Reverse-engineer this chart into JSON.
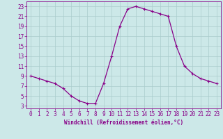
{
  "x": [
    0,
    1,
    2,
    3,
    4,
    5,
    6,
    7,
    8,
    9,
    10,
    11,
    12,
    13,
    14,
    15,
    16,
    17,
    18,
    19,
    20,
    21,
    22,
    23
  ],
  "y": [
    9,
    8.5,
    8,
    7.5,
    6.5,
    5,
    4,
    3.5,
    3.5,
    7.5,
    13,
    19,
    22.5,
    23,
    22.5,
    22,
    21.5,
    21,
    15,
    11,
    9.5,
    8.5,
    8,
    7.5
  ],
  "line_color": "#880088",
  "marker": "+",
  "marker_size": 3,
  "marker_lw": 0.8,
  "line_width": 0.9,
  "bg_color": "#cce8e8",
  "grid_color": "#aacccc",
  "xlabel": "Windchill (Refroidissement éolien,°C)",
  "xlabel_color": "#880088",
  "tick_color": "#880088",
  "yticks": [
    3,
    5,
    7,
    9,
    11,
    13,
    15,
    17,
    19,
    21,
    23
  ],
  "xticks": [
    0,
    1,
    2,
    3,
    4,
    5,
    6,
    7,
    8,
    9,
    10,
    11,
    12,
    13,
    14,
    15,
    16,
    17,
    18,
    19,
    20,
    21,
    22,
    23
  ],
  "ylim": [
    2.5,
    24.0
  ],
  "xlim": [
    -0.5,
    23.5
  ],
  "tick_fontsize": 5.5,
  "xlabel_fontsize": 5.5
}
